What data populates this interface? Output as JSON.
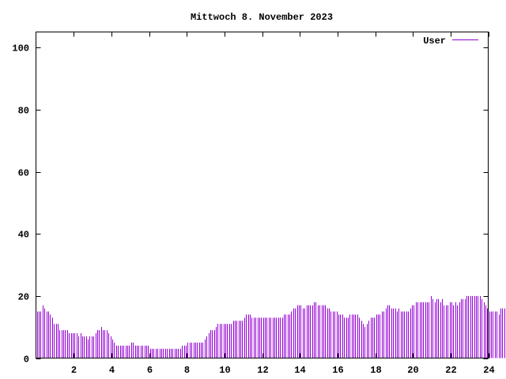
{
  "chart_data": {
    "type": "bar",
    "title": "Mittwoch 8. November 2023",
    "xlabel": "",
    "ylabel": "",
    "xlim": [
      0,
      24
    ],
    "ylim": [
      0,
      105
    ],
    "x_ticks": [
      2,
      4,
      6,
      8,
      10,
      12,
      14,
      16,
      18,
      20,
      22,
      24
    ],
    "y_ticks": [
      0,
      20,
      40,
      60,
      80,
      100
    ],
    "grid": false,
    "legend_position": "top-right",
    "series": [
      {
        "name": "User",
        "color": "#9400d3",
        "bucket_hours": 0.1,
        "values": [
          15,
          15,
          15,
          17,
          16,
          15,
          15,
          14,
          13,
          11,
          11,
          11,
          9,
          9,
          9,
          9,
          9,
          8,
          8,
          8,
          8,
          8,
          7,
          8,
          7,
          7,
          7,
          6,
          7,
          7,
          7,
          8,
          9,
          9,
          10,
          9,
          9,
          9,
          8,
          7,
          6,
          5,
          4,
          4,
          4,
          4,
          4,
          4,
          4,
          4,
          5,
          5,
          4,
          4,
          4,
          4,
          4,
          4,
          4,
          4,
          3,
          3,
          3,
          3,
          3,
          3,
          3,
          3,
          3,
          3,
          3,
          3,
          3,
          3,
          3,
          3,
          3,
          4,
          4,
          4,
          5,
          5,
          5,
          5,
          5,
          5,
          5,
          5,
          5,
          6,
          7,
          8,
          9,
          9,
          9,
          10,
          11,
          11,
          11,
          11,
          11,
          11,
          11,
          11,
          12,
          12,
          12,
          12,
          12,
          12,
          13,
          14,
          14,
          14,
          13,
          13,
          13,
          13,
          13,
          13,
          13,
          13,
          13,
          13,
          13,
          13,
          13,
          13,
          13,
          13,
          13,
          14,
          14,
          14,
          14,
          15,
          16,
          16,
          17,
          17,
          17,
          16,
          16,
          17,
          17,
          17,
          17,
          18,
          18,
          17,
          17,
          17,
          17,
          17,
          16,
          16,
          15,
          15,
          15,
          15,
          14,
          14,
          14,
          13,
          13,
          13,
          14,
          14,
          14,
          14,
          14,
          13,
          12,
          11,
          10,
          11,
          12,
          13,
          13,
          13,
          14,
          14,
          14,
          15,
          15,
          16,
          17,
          17,
          16,
          16,
          16,
          15,
          16,
          15,
          15,
          15,
          15,
          15,
          16,
          17,
          17,
          18,
          18,
          18,
          18,
          18,
          18,
          18,
          18,
          20,
          19,
          18,
          19,
          19,
          18,
          19,
          17,
          17,
          17,
          18,
          18,
          17,
          18,
          17,
          18,
          19,
          19,
          19,
          20,
          20,
          20,
          20,
          20,
          20,
          20,
          20,
          19,
          18,
          17,
          16,
          15,
          15,
          15,
          15,
          15,
          14,
          16,
          16,
          16,
          16,
          16,
          14
        ]
      }
    ]
  }
}
